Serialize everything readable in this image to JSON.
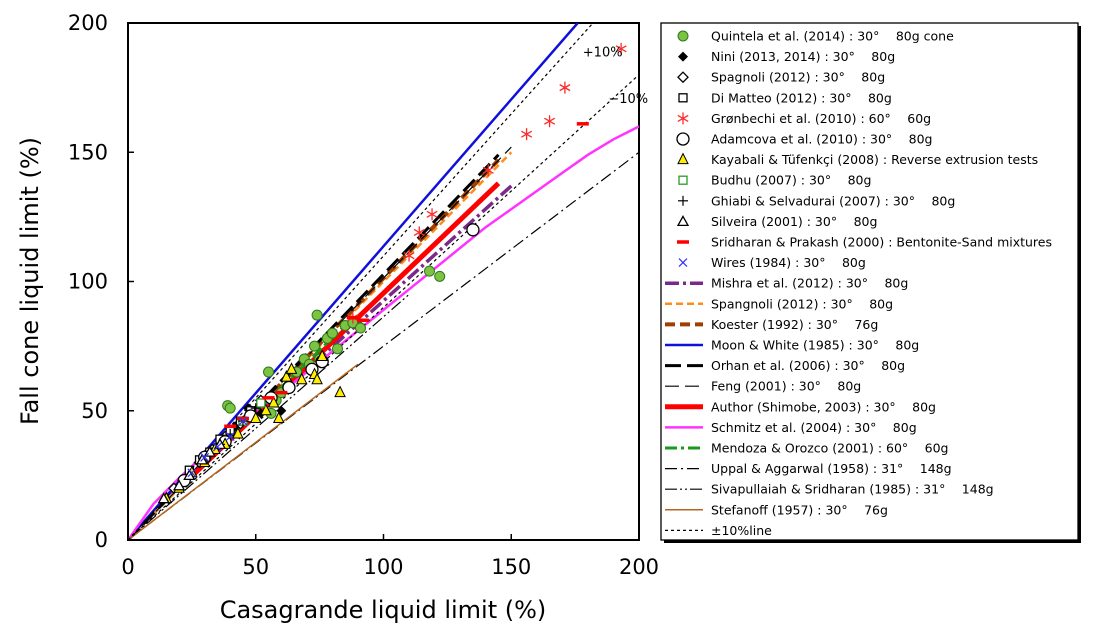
{
  "chart_data": {
    "type": "scatter",
    "xlabel": "Casagrande liquid limit (%)",
    "ylabel": "Fall cone liquid limit (%)",
    "xlim": [
      0,
      200
    ],
    "ylim": [
      0,
      200
    ],
    "xticks": [
      "0",
      "50",
      "100",
      "150",
      "200"
    ],
    "yticks": [
      "0",
      "50",
      "100",
      "150",
      "200"
    ],
    "grid": false,
    "legend_position": "right",
    "annotations": [
      {
        "text": "+10%",
        "x": 178,
        "y": 187
      },
      {
        "text": "−10%",
        "x": 188,
        "y": 169
      }
    ],
    "series": [
      {
        "name": "Quintela et al. (2014) : 30°　 80g cone",
        "kind": "marker",
        "marker": "circle-filled",
        "color": "#7dc242",
        "points": [
          [
            39,
            52
          ],
          [
            40,
            51
          ],
          [
            55,
            65
          ],
          [
            56,
            49
          ],
          [
            58,
            54
          ],
          [
            60,
            57
          ],
          [
            63,
            59
          ],
          [
            66,
            65
          ],
          [
            69,
            70
          ],
          [
            71,
            68
          ],
          [
            73,
            75
          ],
          [
            74,
            87
          ],
          [
            75,
            70
          ],
          [
            78,
            78
          ],
          [
            80,
            80
          ],
          [
            82,
            74
          ],
          [
            85,
            83
          ],
          [
            88,
            84
          ],
          [
            91,
            82
          ],
          [
            118,
            104
          ],
          [
            122,
            102
          ]
        ]
      },
      {
        "name": "Nini (2013, 2014) : 30°　 80g",
        "kind": "marker",
        "marker": "diamond-filled",
        "color": "#000000",
        "points": [
          [
            35,
            36
          ],
          [
            38,
            40
          ],
          [
            42,
            44
          ],
          [
            46,
            47
          ],
          [
            47,
            51
          ],
          [
            52,
            49
          ],
          [
            55,
            55
          ],
          [
            60,
            50
          ]
        ]
      },
      {
        "name": "Spagnoli (2012) : 30°　 80g",
        "kind": "marker",
        "marker": "diamond-open",
        "color": "#000000",
        "points": [
          [
            18,
            20
          ],
          [
            24,
            25
          ],
          [
            28,
            30
          ],
          [
            33,
            35
          ],
          [
            38,
            40
          ],
          [
            44,
            45
          ],
          [
            48,
            50
          ],
          [
            52,
            54
          ]
        ]
      },
      {
        "name": "Di Matteo (2012) : 30°　 80g",
        "kind": "marker",
        "marker": "square-open",
        "color": "#000000",
        "points": [
          [
            24,
            27
          ],
          [
            28,
            31
          ],
          [
            32,
            34
          ],
          [
            36,
            39
          ],
          [
            40,
            42
          ],
          [
            44,
            46
          ],
          [
            48,
            50
          ]
        ]
      },
      {
        "name": "Grønbechi et al. (2010) : 60°　 60g",
        "kind": "marker",
        "marker": "asterisk",
        "color": "#ff2a2a",
        "points": [
          [
            88,
            86
          ],
          [
            110,
            110
          ],
          [
            114,
            119
          ],
          [
            119,
            126
          ],
          [
            141,
            143
          ],
          [
            156,
            157
          ],
          [
            165,
            162
          ],
          [
            171,
            175
          ],
          [
            193,
            190
          ]
        ]
      },
      {
        "name": "Adamcova et al. (2010) : 30°　 80g",
        "kind": "marker",
        "marker": "circle-open",
        "color": "#000000",
        "points": [
          [
            22,
            23
          ],
          [
            30,
            32
          ],
          [
            38,
            38
          ],
          [
            48,
            48
          ],
          [
            56,
            55
          ],
          [
            63,
            59
          ],
          [
            72,
            66
          ],
          [
            76,
            69
          ],
          [
            135,
            120
          ]
        ]
      },
      {
        "name": "Kayabali & Tüfenkçi (2008) : Reverse extrusion tests",
        "kind": "marker",
        "marker": "triangle-filled",
        "color": "#ffee00",
        "points": [
          [
            15,
            16
          ],
          [
            20,
            20
          ],
          [
            25,
            26
          ],
          [
            30,
            30
          ],
          [
            34,
            35
          ],
          [
            38,
            37
          ],
          [
            43,
            41
          ],
          [
            50,
            47
          ],
          [
            54,
            50
          ],
          [
            57,
            53
          ],
          [
            59,
            47
          ],
          [
            62,
            63
          ],
          [
            64,
            66
          ],
          [
            68,
            62
          ],
          [
            73,
            64
          ],
          [
            74,
            62
          ],
          [
            76,
            71
          ],
          [
            83,
            57
          ]
        ]
      },
      {
        "name": "Budhu (2007) : 30°　 80g",
        "kind": "marker",
        "marker": "square-open",
        "color": "#2a9a2a",
        "points": [
          [
            45,
            46
          ],
          [
            52,
            53
          ]
        ]
      },
      {
        "name": "Ghiabi & Selvadurai (2007) : 30°　 80g",
        "kind": "marker",
        "marker": "plus",
        "color": "#000000",
        "points": [
          [
            32,
            33
          ],
          [
            36,
            37
          ],
          [
            40,
            41
          ],
          [
            45,
            46
          ],
          [
            50,
            51
          ]
        ]
      },
      {
        "name": "Silveira (2001) : 30°　 80g",
        "kind": "marker",
        "marker": "triangle-open",
        "color": "#000000",
        "points": [
          [
            14,
            16
          ],
          [
            20,
            21
          ],
          [
            24,
            25
          ],
          [
            29,
            31
          ],
          [
            32,
            34
          ],
          [
            36,
            37
          ]
        ]
      },
      {
        "name": "Sridharan & Prakash (2000) : Bentonite-Sand mixtures",
        "kind": "marker",
        "marker": "dash",
        "color": "#ff0000",
        "points": [
          [
            40,
            44
          ],
          [
            45,
            47
          ],
          [
            55,
            55
          ],
          [
            60,
            57
          ],
          [
            88,
            86
          ],
          [
            92,
            85
          ],
          [
            178,
            161
          ]
        ]
      },
      {
        "name": "Wires (1984) : 30°　 80g",
        "kind": "marker",
        "marker": "x",
        "color": "#3333ff",
        "points": [
          [
            25,
            26
          ],
          [
            30,
            32
          ],
          [
            35,
            36
          ],
          [
            40,
            40
          ],
          [
            45,
            46
          ]
        ]
      },
      {
        "name": "Mishra et al. (2012) : 30°　 80g",
        "kind": "line",
        "stroke": "#7a2a8a",
        "width": 3.5,
        "dash": "14 4 3 4",
        "points": [
          [
            15,
            17
          ],
          [
            150,
            137
          ]
        ]
      },
      {
        "name": "Spangnoli (2012) : 30°　 80g",
        "kind": "line",
        "stroke": "#ff8c1a",
        "width": 2.5,
        "dash": "7 4",
        "points": [
          [
            10,
            10
          ],
          [
            150,
            150
          ]
        ]
      },
      {
        "name": "Koester (1992) : 30°　 76g",
        "kind": "line",
        "stroke": "#a04000",
        "width": 4,
        "dash": "10 5",
        "points": [
          [
            20,
            20
          ],
          [
            145,
            147
          ]
        ]
      },
      {
        "name": "Moon & White (1985) : 30°　 80g",
        "kind": "line",
        "stroke": "#1010dd",
        "width": 2.5,
        "dash": "",
        "points": [
          [
            0,
            0
          ],
          [
            176,
            200
          ]
        ]
      },
      {
        "name": "Orhan et al. (2006) : 30°　 80g",
        "kind": "line",
        "stroke": "#000000",
        "width": 3,
        "dash": "16 6",
        "points": [
          [
            0,
            0
          ],
          [
            145,
            149
          ]
        ]
      },
      {
        "name": "Feng (2001) : 30°　 80g",
        "kind": "line",
        "stroke": "#000000",
        "width": 1.2,
        "dash": "14 6",
        "points": [
          [
            0,
            0
          ],
          [
            150,
            152
          ]
        ]
      },
      {
        "name": "Author (Shimobe, 2003) : 30°　 80g",
        "kind": "line",
        "stroke": "#ff0000",
        "width": 5,
        "dash": "",
        "points": [
          [
            20,
            20
          ],
          [
            145,
            138
          ]
        ]
      },
      {
        "name": "Schmitz et al. (2004) : 30°　 80g",
        "kind": "line",
        "stroke": "#ff33ff",
        "width": 2.5,
        "dash": "",
        "points": [
          [
            0,
            0
          ],
          [
            10,
            14
          ],
          [
            20,
            24
          ],
          [
            30,
            33
          ],
          [
            40,
            41
          ],
          [
            50,
            50
          ],
          [
            60,
            57
          ],
          [
            70,
            65
          ],
          [
            80,
            73
          ],
          [
            90,
            81
          ],
          [
            100,
            89
          ],
          [
            110,
            97
          ],
          [
            120,
            105
          ],
          [
            130,
            113
          ],
          [
            140,
            121
          ],
          [
            150,
            128
          ],
          [
            160,
            135
          ],
          [
            170,
            142
          ],
          [
            180,
            149
          ],
          [
            190,
            155
          ],
          [
            200,
            160
          ]
        ]
      },
      {
        "name": "Mendoza & Orozco (2001) : 60°　 60g",
        "kind": "line",
        "stroke": "#1a9a1a",
        "width": 3,
        "dash": "12 4 3 4",
        "points": [
          [
            40,
            40
          ],
          [
            85,
            83
          ]
        ]
      },
      {
        "name": "Uppal & Aggarwal (1958) : 31°　 148g",
        "kind": "line",
        "stroke": "#000000",
        "width": 1.2,
        "dash": "12 4 2 4",
        "points": [
          [
            0,
            0
          ],
          [
            200,
            150
          ]
        ]
      },
      {
        "name": "Sivapullaiah & Sridharan (1985) : 31°　 148g",
        "kind": "line",
        "stroke": "#000000",
        "width": 1.2,
        "dash": "12 3 2 3 2 3",
        "points": [
          [
            0,
            0
          ],
          [
            110,
            95
          ]
        ]
      },
      {
        "name": "Stefanoff (1957) : 30°　 76g",
        "kind": "line",
        "stroke": "#b5651d",
        "width": 1.5,
        "dash": "",
        "points": [
          [
            0,
            0
          ],
          [
            90,
            68
          ]
        ]
      },
      {
        "name": "±10%line",
        "kind": "line",
        "stroke": "#000000",
        "width": 1.2,
        "dash": "3 3",
        "points": [
          [
            0,
            0
          ],
          [
            182,
            200
          ]
        ],
        "extra": [
          [
            [
              0,
              0
            ],
            [
              200,
              180
            ]
          ]
        ]
      }
    ]
  }
}
